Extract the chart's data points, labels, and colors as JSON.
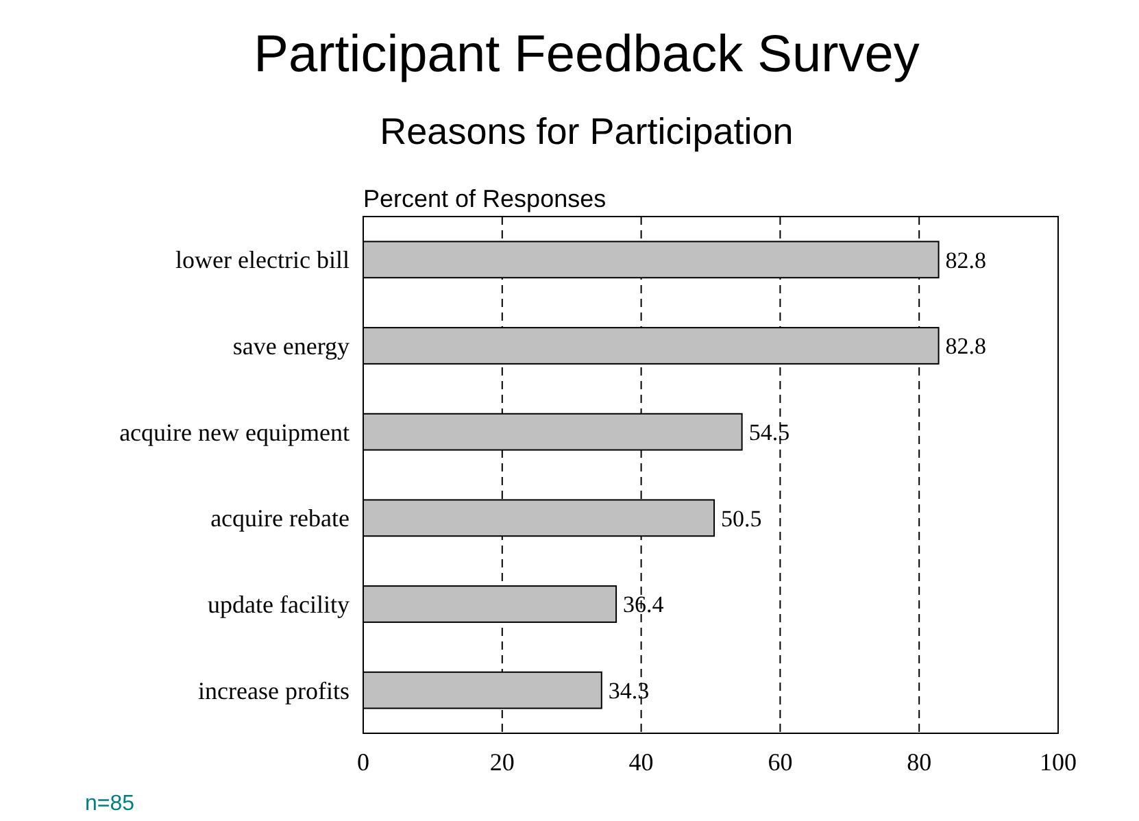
{
  "chart_data": {
    "type": "bar",
    "orientation": "horizontal",
    "title": "Participant Feedback Survey",
    "subtitle": "Reasons for Participation",
    "xlabel": "Percent of Responses",
    "categories": [
      "lower electric bill",
      "save energy",
      "acquire new equipment",
      "acquire rebate",
      "update facility",
      "increase profits"
    ],
    "values": [
      82.8,
      82.8,
      54.5,
      50.5,
      36.4,
      34.3
    ],
    "color": "#c0c0c0",
    "data_labels": true,
    "xlim": [
      0,
      100
    ],
    "xticks": [
      0,
      20,
      40,
      60,
      80,
      100
    ],
    "grid": "x",
    "annotations": [
      "n=85"
    ]
  }
}
